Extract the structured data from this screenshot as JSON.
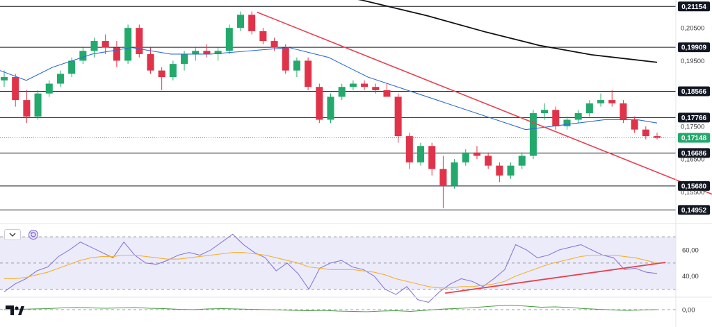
{
  "chart_data": [
    {
      "type": "candlestick",
      "pane": "price",
      "title": "",
      "y_ticks": [
        "0,20500",
        "0,19500",
        "0,17500",
        "0,16500",
        "0,15500"
      ],
      "ylim": [
        0.1462,
        0.2135
      ],
      "level_lines": [
        {
          "label": "0,21154",
          "value": 0.21154
        },
        {
          "label": "0,19909",
          "value": 0.19909
        },
        {
          "label": "0,18566",
          "value": 0.18566
        },
        {
          "label": "0,17766",
          "value": 0.17766
        },
        {
          "label": "0,16686",
          "value": 0.16686
        },
        {
          "label": "0,15680",
          "value": 0.1568
        },
        {
          "label": "0,14952",
          "value": 0.14952
        }
      ],
      "last_price": {
        "label": "0,17148",
        "value": 0.17148
      },
      "candles_ohlc_sampled": [
        [
          0.189,
          0.192,
          0.187,
          0.19
        ],
        [
          0.19,
          0.191,
          0.181,
          0.183
        ],
        [
          0.183,
          0.186,
          0.176,
          0.178
        ],
        [
          0.178,
          0.186,
          0.177,
          0.185
        ],
        [
          0.185,
          0.189,
          0.184,
          0.188
        ],
        [
          0.188,
          0.192,
          0.187,
          0.191
        ],
        [
          0.191,
          0.196,
          0.19,
          0.195
        ],
        [
          0.195,
          0.199,
          0.194,
          0.198
        ],
        [
          0.198,
          0.202,
          0.196,
          0.201
        ],
        [
          0.201,
          0.203,
          0.197,
          0.199
        ],
        [
          0.199,
          0.201,
          0.193,
          0.195
        ],
        [
          0.195,
          0.206,
          0.194,
          0.205
        ],
        [
          0.205,
          0.206,
          0.196,
          0.197
        ],
        [
          0.197,
          0.199,
          0.191,
          0.192
        ],
        [
          0.192,
          0.193,
          0.186,
          0.19
        ],
        [
          0.19,
          0.195,
          0.189,
          0.194
        ],
        [
          0.194,
          0.198,
          0.192,
          0.197
        ],
        [
          0.197,
          0.199,
          0.195,
          0.198
        ],
        [
          0.198,
          0.2,
          0.196,
          0.197
        ],
        [
          0.197,
          0.199,
          0.195,
          0.198
        ],
        [
          0.198,
          0.206,
          0.197,
          0.205
        ],
        [
          0.205,
          0.21,
          0.204,
          0.209
        ],
        [
          0.209,
          0.21,
          0.203,
          0.204
        ],
        [
          0.204,
          0.205,
          0.2,
          0.201
        ],
        [
          0.201,
          0.202,
          0.198,
          0.199
        ],
        [
          0.199,
          0.2,
          0.191,
          0.192
        ],
        [
          0.192,
          0.196,
          0.19,
          0.195
        ],
        [
          0.195,
          0.196,
          0.186,
          0.187
        ],
        [
          0.187,
          0.188,
          0.176,
          0.177
        ],
        [
          0.177,
          0.185,
          0.176,
          0.184
        ],
        [
          0.184,
          0.188,
          0.183,
          0.187
        ],
        [
          0.187,
          0.189,
          0.186,
          0.188
        ],
        [
          0.188,
          0.189,
          0.186,
          0.187
        ],
        [
          0.187,
          0.188,
          0.185,
          0.186
        ],
        [
          0.186,
          0.188,
          0.185,
          0.184
        ],
        [
          0.184,
          0.185,
          0.17,
          0.172
        ],
        [
          0.172,
          0.173,
          0.162,
          0.164
        ],
        [
          0.164,
          0.17,
          0.163,
          0.169
        ],
        [
          0.169,
          0.17,
          0.16,
          0.162
        ],
        [
          0.162,
          0.166,
          0.15,
          0.157
        ],
        [
          0.157,
          0.165,
          0.156,
          0.164
        ],
        [
          0.164,
          0.168,
          0.163,
          0.167
        ],
        [
          0.167,
          0.169,
          0.165,
          0.166
        ],
        [
          0.166,
          0.167,
          0.162,
          0.163
        ],
        [
          0.163,
          0.164,
          0.158,
          0.16
        ],
        [
          0.16,
          0.164,
          0.159,
          0.163
        ],
        [
          0.163,
          0.167,
          0.162,
          0.166
        ],
        [
          0.166,
          0.18,
          0.165,
          0.179
        ],
        [
          0.179,
          0.182,
          0.177,
          0.18
        ],
        [
          0.18,
          0.181,
          0.174,
          0.175
        ],
        [
          0.175,
          0.178,
          0.174,
          0.177
        ],
        [
          0.177,
          0.18,
          0.176,
          0.179
        ],
        [
          0.179,
          0.183,
          0.178,
          0.182
        ],
        [
          0.182,
          0.185,
          0.181,
          0.183
        ],
        [
          0.183,
          0.186,
          0.181,
          0.182
        ],
        [
          0.182,
          0.183,
          0.176,
          0.177
        ],
        [
          0.177,
          0.178,
          0.173,
          0.174
        ],
        [
          0.174,
          0.175,
          0.171,
          0.172
        ],
        [
          0.172,
          0.173,
          0.171,
          0.1715
        ]
      ],
      "moving_averages": [
        {
          "color": "#2f6bd6",
          "points": [
            [
              0,
              0.192
            ],
            [
              0.04,
              0.189
            ],
            [
              0.08,
              0.193
            ],
            [
              0.14,
              0.197
            ],
            [
              0.2,
              0.199
            ],
            [
              0.26,
              0.197
            ],
            [
              0.32,
              0.197
            ],
            [
              0.38,
              0.198
            ],
            [
              0.44,
              0.199
            ],
            [
              0.5,
              0.196
            ],
            [
              0.56,
              0.19
            ],
            [
              0.62,
              0.186
            ],
            [
              0.68,
              0.182
            ],
            [
              0.74,
              0.178
            ],
            [
              0.8,
              0.174
            ],
            [
              0.84,
              0.175
            ],
            [
              0.88,
              0.176
            ],
            [
              0.92,
              0.177
            ],
            [
              0.97,
              0.177
            ],
            [
              1,
              0.176
            ]
          ]
        },
        {
          "color": "#111111",
          "points": [
            [
              0.46,
              0.2165
            ],
            [
              0.55,
              0.2135
            ],
            [
              0.65,
              0.2087
            ],
            [
              0.74,
              0.2037
            ],
            [
              0.82,
              0.1997
            ],
            [
              0.9,
              0.1968
            ],
            [
              1,
              0.1945
            ]
          ]
        }
      ],
      "trend_lines": [
        {
          "color": "#e8414f",
          "points": [
            [
              0.381,
              0.2098
            ],
            [
              1,
              0.1543
            ]
          ]
        }
      ]
    },
    {
      "type": "line",
      "pane": "rsi",
      "y_ticks": [
        "60,00",
        "40,00"
      ],
      "levels": [
        70,
        50,
        30
      ],
      "ylim": [
        25,
        78
      ],
      "series": [
        {
          "color": "#8a7ad6",
          "values": [
            28,
            34,
            38,
            44,
            47,
            55,
            60,
            66,
            62,
            58,
            54,
            66,
            56,
            50,
            49,
            52,
            56,
            58,
            56,
            60,
            66,
            72,
            64,
            58,
            54,
            44,
            50,
            42,
            30,
            46,
            50,
            52,
            47,
            45,
            40,
            30,
            26,
            32,
            22,
            20,
            28,
            34,
            38,
            36,
            32,
            38,
            45,
            64,
            60,
            54,
            56,
            60,
            62,
            64,
            60,
            56,
            54,
            45,
            46,
            43,
            42
          ]
        },
        {
          "color": "#f2b233",
          "values": [
            38,
            38,
            39,
            41,
            43,
            46,
            49,
            52,
            54,
            55,
            55,
            56,
            56,
            55,
            54,
            53,
            53,
            54,
            55,
            56,
            57,
            58,
            58,
            57,
            56,
            54,
            52,
            50,
            47,
            46,
            45,
            45,
            45,
            44,
            43,
            41,
            38,
            36,
            34,
            32,
            31,
            31,
            32,
            32,
            33,
            34,
            36,
            40,
            43,
            46,
            49,
            51,
            53,
            55,
            56,
            56,
            56,
            55,
            54,
            52,
            50
          ]
        }
      ],
      "trend_lines": [
        {
          "color": "#e8414f",
          "points": [
            [
              0.66,
              27
            ],
            [
              0.987,
              50.5
            ]
          ]
        }
      ]
    },
    {
      "type": "line",
      "pane": "oscillator",
      "y_ticks": [
        "0,00"
      ],
      "series": [
        {
          "color": "#4a9a44",
          "values": [
            0,
            0.1,
            0.2,
            0.3,
            0.5,
            0.6,
            0.5,
            0.4,
            0.5,
            0.6,
            0.4,
            0.3,
            0.1,
            0,
            0.2,
            0.3,
            0.2,
            0.1,
            0,
            -0.1,
            -0.2,
            -0.3,
            -0.2,
            -0.4,
            -0.5,
            -0.6,
            -0.4,
            -0.3,
            -0.5,
            -0.2,
            0.1,
            0.3,
            0.5,
            0.8,
            1.1,
            1.3,
            1.0,
            0.7,
            0.8,
            0.6,
            0.3,
            0.1,
            -0.1,
            -0.2,
            -0.1,
            0
          ]
        }
      ]
    }
  ],
  "colors": {
    "bull": "#22a96b",
    "bear": "#e0334a",
    "last_price": "#22a96b",
    "rsi_band": "#ecebfa"
  },
  "icons": [
    "chevron-down-icon",
    "refresh-icon",
    "tradingview-logo"
  ]
}
